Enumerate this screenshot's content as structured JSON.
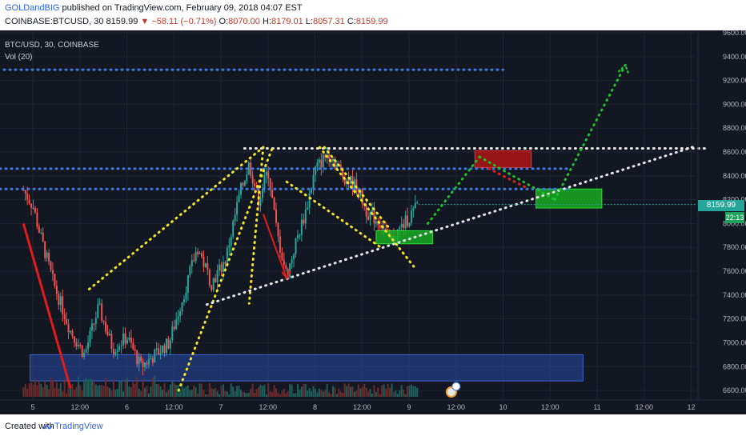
{
  "header": {
    "author": "GOLDandBIG",
    "published_text": "published on TradingView.com, February 09, 2018 04:07 EST",
    "symbol": "COINBASE:BTCUSD, 30",
    "last": "8159.99",
    "change": "▼ −58.11 (−0.71%)",
    "o_label": "O:",
    "o_value": "8070.00",
    "h_label": "H:",
    "h_value": "8179.01",
    "l_label": "L:",
    "l_value": "8057.31",
    "c_label": "C:",
    "c_value": "8159.99"
  },
  "legend": {
    "series_title": "BTC/USD, 30, COINBASE",
    "volume_title": "Vol (20)"
  },
  "price_tag": {
    "value": "8159.99",
    "timer": "22:13"
  },
  "footer": {
    "created_with": "Created with",
    "brand": "TradingView"
  },
  "colors": {
    "background": "#131722",
    "up": "#26a69a",
    "down": "#ef5350",
    "yellow": "#f5e623",
    "white": "#e8e8e8",
    "blue": "#3d7be0",
    "green": "#1fbf2a",
    "red": "#e01b1b"
  },
  "chart_data": {
    "type": "candlestick",
    "title": "BTC/USD, 30, COINBASE",
    "y_ticks": [
      6600,
      6800,
      7000,
      7200,
      7400,
      7600,
      7800,
      8000,
      8200,
      8400,
      8600,
      8800,
      9000,
      9200,
      9400,
      9600
    ],
    "x_ticks": [
      "5",
      "12:00",
      "6",
      "12:00",
      "7",
      "12:00",
      "8",
      "12:00",
      "9",
      "12:00",
      "10",
      "12:00",
      "11",
      "12:00",
      "12"
    ],
    "ylim": [
      6520,
      9620
    ],
    "grid": true,
    "last_price": 8159.99,
    "price_path": [
      {
        "d": 4.9,
        "p": 8280
      },
      {
        "d": 5.0,
        "p": 8150
      },
      {
        "d": 5.08,
        "p": 7900
      },
      {
        "d": 5.22,
        "p": 7500
      },
      {
        "d": 5.4,
        "p": 7100
      },
      {
        "d": 5.55,
        "p": 6900
      },
      {
        "d": 5.7,
        "p": 7300
      },
      {
        "d": 5.85,
        "p": 6950
      },
      {
        "d": 6.0,
        "p": 7050
      },
      {
        "d": 6.15,
        "p": 6800
      },
      {
        "d": 6.3,
        "p": 6900
      },
      {
        "d": 6.45,
        "p": 7000
      },
      {
        "d": 6.6,
        "p": 7400
      },
      {
        "d": 6.75,
        "p": 7800
      },
      {
        "d": 6.9,
        "p": 7500
      },
      {
        "d": 7.05,
        "p": 7700
      },
      {
        "d": 7.2,
        "p": 8250
      },
      {
        "d": 7.3,
        "p": 8500
      },
      {
        "d": 7.4,
        "p": 8200
      },
      {
        "d": 7.5,
        "p": 8450
      },
      {
        "d": 7.6,
        "p": 7900
      },
      {
        "d": 7.7,
        "p": 7560
      },
      {
        "d": 7.8,
        "p": 7850
      },
      {
        "d": 7.9,
        "p": 8100
      },
      {
        "d": 8.0,
        "p": 8450
      },
      {
        "d": 8.15,
        "p": 8600
      },
      {
        "d": 8.3,
        "p": 8400
      },
      {
        "d": 8.45,
        "p": 8300
      },
      {
        "d": 8.55,
        "p": 8100
      },
      {
        "d": 8.7,
        "p": 8000
      },
      {
        "d": 8.8,
        "p": 7850
      },
      {
        "d": 8.9,
        "p": 7950
      },
      {
        "d": 9.0,
        "p": 8050
      },
      {
        "d": 9.1,
        "p": 8160
      }
    ],
    "annotations": {
      "horizontal_dotted_blue": [
        9290,
        8460,
        8290
      ],
      "horizontal_dotted_white": 8630,
      "yellow_channel": [
        {
          "from": [
            5.6,
            7450
          ],
          "to": [
            7.45,
            8640
          ]
        },
        {
          "from": [
            6.55,
            6600
          ],
          "to": [
            7.55,
            8640
          ]
        },
        {
          "from": [
            7.45,
            8640
          ],
          "to": [
            7.3,
            7330
          ]
        },
        {
          "from": [
            8.05,
            8640
          ],
          "to": [
            9.05,
            7640
          ]
        },
        {
          "from": [
            8.1,
            8640
          ],
          "to": [
            8.8,
            7950
          ]
        },
        {
          "from": [
            7.7,
            8350
          ],
          "to": [
            8.7,
            7800
          ]
        }
      ],
      "white_trendline": {
        "from": [
          6.85,
          7320
        ],
        "to": [
          12.05,
          8650
        ]
      },
      "red_trendline": {
        "from": [
          4.9,
          8000
        ],
        "to": [
          5.4,
          6620
        ]
      },
      "red_down_arrow": {
        "from": [
          7.45,
          8080
        ],
        "to": [
          7.7,
          7540
        ]
      },
      "green_path": [
        [
          9.2,
          8000
        ],
        [
          9.75,
          8560
        ],
        [
          10.55,
          8200
        ],
        [
          11.3,
          9330
        ]
      ],
      "red_dotted_path": [
        [
          9.85,
          8460
        ],
        [
          10.25,
          8300
        ]
      ],
      "boxes": [
        {
          "color": "green",
          "d0": 8.65,
          "d1": 9.25,
          "p0": 7830,
          "p1": 7940
        },
        {
          "color": "red",
          "d0": 9.7,
          "d1": 10.3,
          "p0": 8470,
          "p1": 8610
        },
        {
          "color": "green",
          "d0": 10.35,
          "d1": 11.05,
          "p0": 8130,
          "p1": 8290
        },
        {
          "color": "blue",
          "d0": 4.97,
          "d1": 10.85,
          "p0": 6680,
          "p1": 6900
        }
      ]
    }
  }
}
